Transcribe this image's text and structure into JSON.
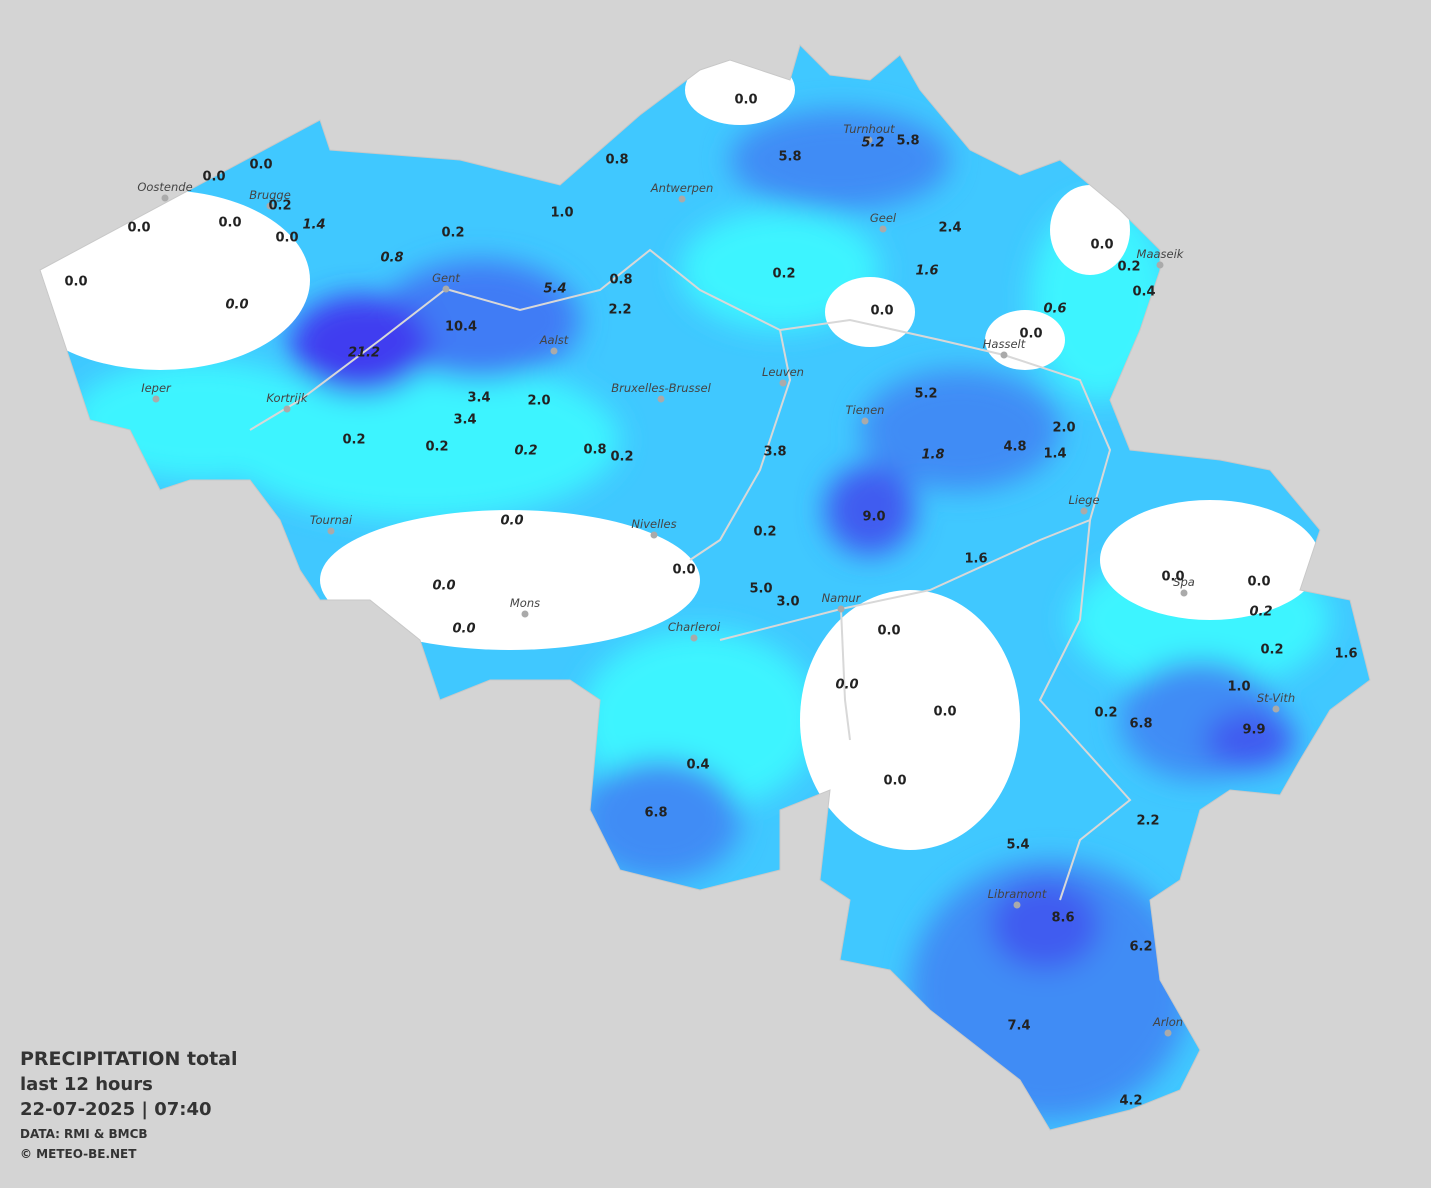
{
  "legend": {
    "title": "PRECIPITATION total",
    "period": "last 12 hours",
    "datetime": "22-07-2025  |  07:40",
    "source": "DATA: RMI & BMCB",
    "credit": "© METEO-BE.NET"
  },
  "cities": [
    "Oostende",
    "Brugge",
    "Antwerpen",
    "Turnhout",
    "Geel",
    "Maaseik",
    "Gent",
    "Aalst",
    "Ieper",
    "Kortrijk",
    "Bruxelles-Brussel",
    "Leuven",
    "Tienen",
    "Hasselt",
    "Liege",
    "Tournai",
    "Nivelles",
    "Mons",
    "Charleroi",
    "Namur",
    "Spa",
    "St-Vith",
    "Libramont",
    "Arlon"
  ],
  "readings": [
    {
      "text": "0.0"
    },
    {
      "text": "0.0"
    },
    {
      "text": "0.0"
    },
    {
      "text": "0.8"
    },
    {
      "text": "5.8"
    },
    {
      "text": "5.2",
      "italic": true
    },
    {
      "text": "5.8"
    },
    {
      "text": "0.2"
    },
    {
      "text": "1.4",
      "italic": true
    },
    {
      "text": "0.0"
    },
    {
      "text": "0.0"
    },
    {
      "text": "0.0"
    },
    {
      "text": "0.2"
    },
    {
      "text": "1.0"
    },
    {
      "text": "2.4"
    },
    {
      "text": "0.0"
    },
    {
      "text": "0.2"
    },
    {
      "text": "0.4"
    },
    {
      "text": "0.0"
    },
    {
      "text": "0.8",
      "italic": true
    },
    {
      "text": "0.2"
    },
    {
      "text": "1.6",
      "italic": true
    },
    {
      "text": "0.8"
    },
    {
      "text": "5.4",
      "italic": true
    },
    {
      "text": "0.0",
      "italic": true
    },
    {
      "text": "2.2"
    },
    {
      "text": "10.4"
    },
    {
      "text": "0.0"
    },
    {
      "text": "0.6",
      "italic": true
    },
    {
      "text": "0.0"
    },
    {
      "text": "21.2",
      "italic": true
    },
    {
      "text": "3.4"
    },
    {
      "text": "2.0"
    },
    {
      "text": "5.2"
    },
    {
      "text": "3.4"
    },
    {
      "text": "2.0"
    },
    {
      "text": "0.2"
    },
    {
      "text": "0.2"
    },
    {
      "text": "0.2",
      "italic": true
    },
    {
      "text": "0.8"
    },
    {
      "text": "0.2"
    },
    {
      "text": "3.8"
    },
    {
      "text": "1.8",
      "italic": true
    },
    {
      "text": "4.8"
    },
    {
      "text": "1.4"
    },
    {
      "text": "0.0",
      "italic": true
    },
    {
      "text": "9.0"
    },
    {
      "text": "0.2"
    },
    {
      "text": "1.6"
    },
    {
      "text": "0.0"
    },
    {
      "text": "0.0",
      "italic": true
    },
    {
      "text": "5.0"
    },
    {
      "text": "3.0"
    },
    {
      "text": "0.0"
    },
    {
      "text": "0.0"
    },
    {
      "text": "0.2",
      "italic": true
    },
    {
      "text": "0.0",
      "italic": true
    },
    {
      "text": "0.0"
    },
    {
      "text": "0.2"
    },
    {
      "text": "1.6"
    },
    {
      "text": "1.0"
    },
    {
      "text": "0.0",
      "italic": true
    },
    {
      "text": "0.0"
    },
    {
      "text": "0.2"
    },
    {
      "text": "6.8"
    },
    {
      "text": "9.9"
    },
    {
      "text": "0.4"
    },
    {
      "text": "0.0"
    },
    {
      "text": "6.8"
    },
    {
      "text": "2.2"
    },
    {
      "text": "5.4"
    },
    {
      "text": "8.6"
    },
    {
      "text": "6.2"
    },
    {
      "text": "7.4"
    },
    {
      "text": "4.2"
    }
  ]
}
